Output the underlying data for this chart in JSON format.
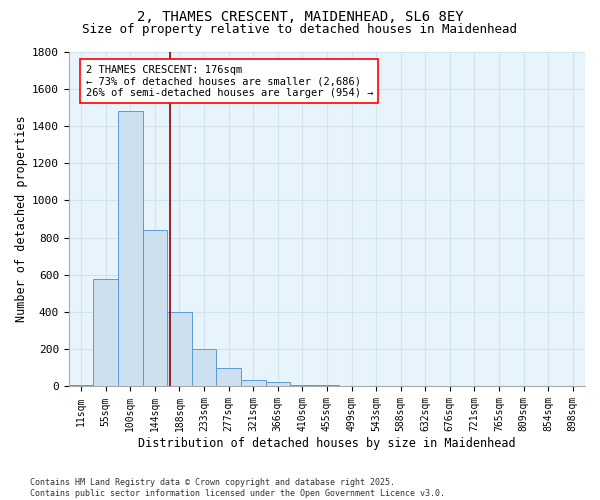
{
  "title_line1": "2, THAMES CRESCENT, MAIDENHEAD, SL6 8EY",
  "title_line2": "Size of property relative to detached houses in Maidenhead",
  "xlabel": "Distribution of detached houses by size in Maidenhead",
  "ylabel": "Number of detached properties",
  "categories": [
    "11sqm",
    "55sqm",
    "100sqm",
    "144sqm",
    "188sqm",
    "233sqm",
    "277sqm",
    "321sqm",
    "366sqm",
    "410sqm",
    "455sqm",
    "499sqm",
    "543sqm",
    "588sqm",
    "632sqm",
    "676sqm",
    "721sqm",
    "765sqm",
    "809sqm",
    "854sqm",
    "898sqm"
  ],
  "values": [
    10,
    580,
    1480,
    840,
    400,
    200,
    100,
    35,
    25,
    10,
    10,
    5,
    0,
    0,
    0,
    0,
    0,
    5,
    0,
    0,
    0
  ],
  "bar_color": "#cce0f0",
  "bar_edgecolor": "#5b9bd5",
  "red_line_x": 3.6,
  "annotation_text_line1": "2 THAMES CRESCENT: 176sqm",
  "annotation_text_line2": "← 73% of detached houses are smaller (2,686)",
  "annotation_text_line3": "26% of semi-detached houses are larger (954) →",
  "ylim": [
    0,
    1800
  ],
  "yticks": [
    0,
    200,
    400,
    600,
    800,
    1000,
    1200,
    1400,
    1600,
    1800
  ],
  "background_color": "#e8f4fc",
  "grid_color": "#d0e4f0",
  "footer_line1": "Contains HM Land Registry data © Crown copyright and database right 2025.",
  "footer_line2": "Contains public sector information licensed under the Open Government Licence v3.0.",
  "title_fontsize": 10,
  "subtitle_fontsize": 9,
  "tick_fontsize": 7,
  "label_fontsize": 8.5,
  "annotation_fontsize": 7.5,
  "footer_fontsize": 6
}
